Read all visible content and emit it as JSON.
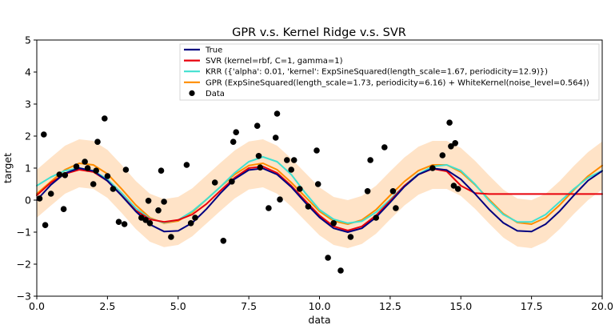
{
  "chart_data": {
    "type": "line",
    "title": "GPR v.s. Kernel Ridge v.s. SVR",
    "xlabel": "data",
    "ylabel": "target",
    "xlim": [
      0,
      20
    ],
    "ylim": [
      -3,
      5
    ],
    "xticks": [
      0,
      2.5,
      5,
      7.5,
      10,
      12.5,
      15,
      17.5,
      20
    ],
    "xtick_labels": [
      "0.0",
      "2.5",
      "5.0",
      "7.5",
      "10.0",
      "12.5",
      "15.0",
      "17.5",
      "20.0"
    ],
    "yticks": [
      -3,
      -2,
      -1,
      0,
      1,
      2,
      3,
      4,
      5
    ],
    "ytick_labels": [
      "−3",
      "−2",
      "−1",
      "0",
      "1",
      "2",
      "3",
      "4",
      "5"
    ],
    "legend_position": "top-right",
    "series": [
      {
        "name": "True",
        "color": "#000080",
        "x": [
          0,
          0.5,
          1,
          1.5,
          2,
          2.5,
          3,
          3.5,
          4,
          4.5,
          5,
          5.5,
          6,
          6.5,
          7,
          7.5,
          8,
          8.5,
          9,
          9.5,
          10,
          10.5,
          11,
          11.5,
          12,
          12.5,
          13,
          13.5,
          14,
          14.5,
          15,
          15.5,
          16,
          16.5,
          17,
          17.5,
          18,
          18.5,
          19,
          19.5,
          20
        ],
        "y": [
          0.0,
          0.48,
          0.84,
          1.0,
          0.91,
          0.6,
          0.14,
          -0.35,
          -0.76,
          -0.98,
          -0.96,
          -0.71,
          -0.28,
          0.22,
          0.66,
          0.94,
          0.99,
          0.8,
          0.41,
          -0.08,
          -0.54,
          -0.88,
          -1.0,
          -0.88,
          -0.54,
          -0.07,
          0.42,
          0.8,
          0.99,
          0.94,
          0.65,
          0.2,
          -0.29,
          -0.71,
          -0.96,
          -0.98,
          -0.75,
          -0.34,
          0.15,
          0.61,
          0.91
        ]
      },
      {
        "name": "SVR (kernel=rbf, C=1, gamma=1)",
        "color": "#e8000b",
        "x": [
          0,
          0.5,
          1,
          1.5,
          2,
          2.5,
          3,
          3.5,
          4,
          4.5,
          5,
          5.5,
          6,
          6.5,
          7,
          7.5,
          8,
          8.5,
          9,
          9.5,
          10,
          10.5,
          11,
          11.5,
          12,
          12.5,
          13,
          13.5,
          14,
          14.5,
          15,
          15.5,
          16,
          17,
          18,
          19,
          20
        ],
        "y": [
          0.15,
          0.55,
          0.82,
          0.95,
          0.88,
          0.6,
          0.15,
          -0.32,
          -0.6,
          -0.68,
          -0.62,
          -0.45,
          -0.12,
          0.3,
          0.7,
          1.0,
          1.05,
          0.85,
          0.45,
          -0.02,
          -0.48,
          -0.82,
          -0.95,
          -0.82,
          -0.48,
          -0.02,
          0.45,
          0.8,
          0.98,
          0.9,
          0.45,
          0.22,
          0.19,
          0.19,
          0.19,
          0.19,
          0.19
        ]
      },
      {
        "name": "KRR ({'alpha': 0.01, 'kernel': ExpSineSquared(length_scale=1.67, periodicity=12.9)})",
        "color": "#40e0d0",
        "x": [
          0,
          0.5,
          1,
          1.5,
          2,
          2.5,
          3,
          3.5,
          4,
          4.5,
          5,
          5.5,
          6,
          6.5,
          7,
          7.5,
          8,
          8.5,
          9,
          9.5,
          10,
          10.5,
          11,
          11.5,
          12,
          12.5,
          13,
          13.5,
          14,
          14.5,
          15,
          15.5,
          16,
          16.5,
          17,
          17.5,
          18,
          18.5,
          19,
          19.5,
          20
        ],
        "y": [
          0.45,
          0.72,
          0.92,
          1.0,
          0.92,
          0.65,
          0.22,
          -0.25,
          -0.58,
          -0.7,
          -0.62,
          -0.35,
          0.02,
          0.42,
          0.85,
          1.2,
          1.35,
          1.2,
          0.8,
          0.22,
          -0.3,
          -0.6,
          -0.72,
          -0.66,
          -0.38,
          0.02,
          0.45,
          0.82,
          1.05,
          1.1,
          0.92,
          0.5,
          -0.02,
          -0.45,
          -0.68,
          -0.68,
          -0.45,
          -0.05,
          0.35,
          0.7,
          0.92
        ]
      },
      {
        "name": "GPR (ExpSineSquared(length_scale=1.73, periodicity=6.16) + WhiteKernel(noise_level=0.564))",
        "color": "#ff8c00",
        "x": [
          0,
          0.5,
          1,
          1.5,
          2,
          2.5,
          3,
          3.5,
          4,
          4.5,
          5,
          5.5,
          6,
          6.5,
          7,
          7.5,
          8,
          8.5,
          9,
          9.5,
          10,
          10.5,
          11,
          11.5,
          12,
          12.5,
          13,
          13.5,
          14,
          14.5,
          15,
          15.5,
          16,
          16.5,
          17,
          17.5,
          18,
          18.5,
          19,
          19.5,
          20
        ],
        "y": [
          0.2,
          0.58,
          0.95,
          1.15,
          1.1,
          0.82,
          0.35,
          -0.15,
          -0.55,
          -0.72,
          -0.65,
          -0.38,
          0.02,
          0.42,
          0.8,
          1.08,
          1.15,
          0.95,
          0.55,
          0.1,
          -0.35,
          -0.65,
          -0.75,
          -0.62,
          -0.3,
          0.15,
          0.58,
          0.92,
          1.1,
          1.1,
          0.88,
          0.48,
          0.02,
          -0.42,
          -0.7,
          -0.75,
          -0.55,
          -0.15,
          0.32,
          0.75,
          1.08
        ]
      }
    ],
    "band": {
      "name": "GPR confidence band",
      "color": "#ffcc99",
      "half_width": 0.75
    },
    "scatter": {
      "name": "Data",
      "color": "#000000",
      "x": [
        0.1,
        0.25,
        0.3,
        0.5,
        0.8,
        0.95,
        1.0,
        1.4,
        1.7,
        1.8,
        2.0,
        2.1,
        2.15,
        2.4,
        2.5,
        2.7,
        2.9,
        3.1,
        3.15,
        3.7,
        3.85,
        3.95,
        4.0,
        4.3,
        4.4,
        4.5,
        4.75,
        5.3,
        5.45,
        5.6,
        6.3,
        6.6,
        6.9,
        6.95,
        7.05,
        7.8,
        7.85,
        7.9,
        8.2,
        8.45,
        8.5,
        8.6,
        8.85,
        9.0,
        9.1,
        9.3,
        9.6,
        9.9,
        9.95,
        10.3,
        10.5,
        10.75,
        11.1,
        11.7,
        11.8,
        12.0,
        12.3,
        12.6,
        12.7,
        14.0,
        14.35,
        14.6,
        14.65,
        14.75,
        14.8,
        14.9
      ],
      "y": [
        0.05,
        2.05,
        -0.78,
        0.2,
        0.8,
        -0.28,
        0.78,
        1.05,
        1.2,
        1.0,
        0.5,
        0.92,
        1.82,
        2.55,
        0.75,
        0.35,
        -0.68,
        -0.75,
        0.95,
        -0.55,
        -0.62,
        -0.02,
        -0.72,
        -0.32,
        0.92,
        -0.05,
        -1.15,
        1.1,
        -0.72,
        -0.55,
        0.55,
        -1.27,
        0.58,
        1.82,
        2.12,
        2.32,
        1.38,
        1.02,
        -0.25,
        1.95,
        2.7,
        0.02,
        1.25,
        0.95,
        1.25,
        0.35,
        -0.2,
        1.55,
        0.5,
        -1.8,
        -0.72,
        -2.2,
        -1.15,
        0.28,
        1.25,
        -0.55,
        1.65,
        0.28,
        -0.25,
        1.0,
        1.4,
        2.42,
        1.68,
        0.45,
        1.78,
        0.35
      ]
    }
  }
}
